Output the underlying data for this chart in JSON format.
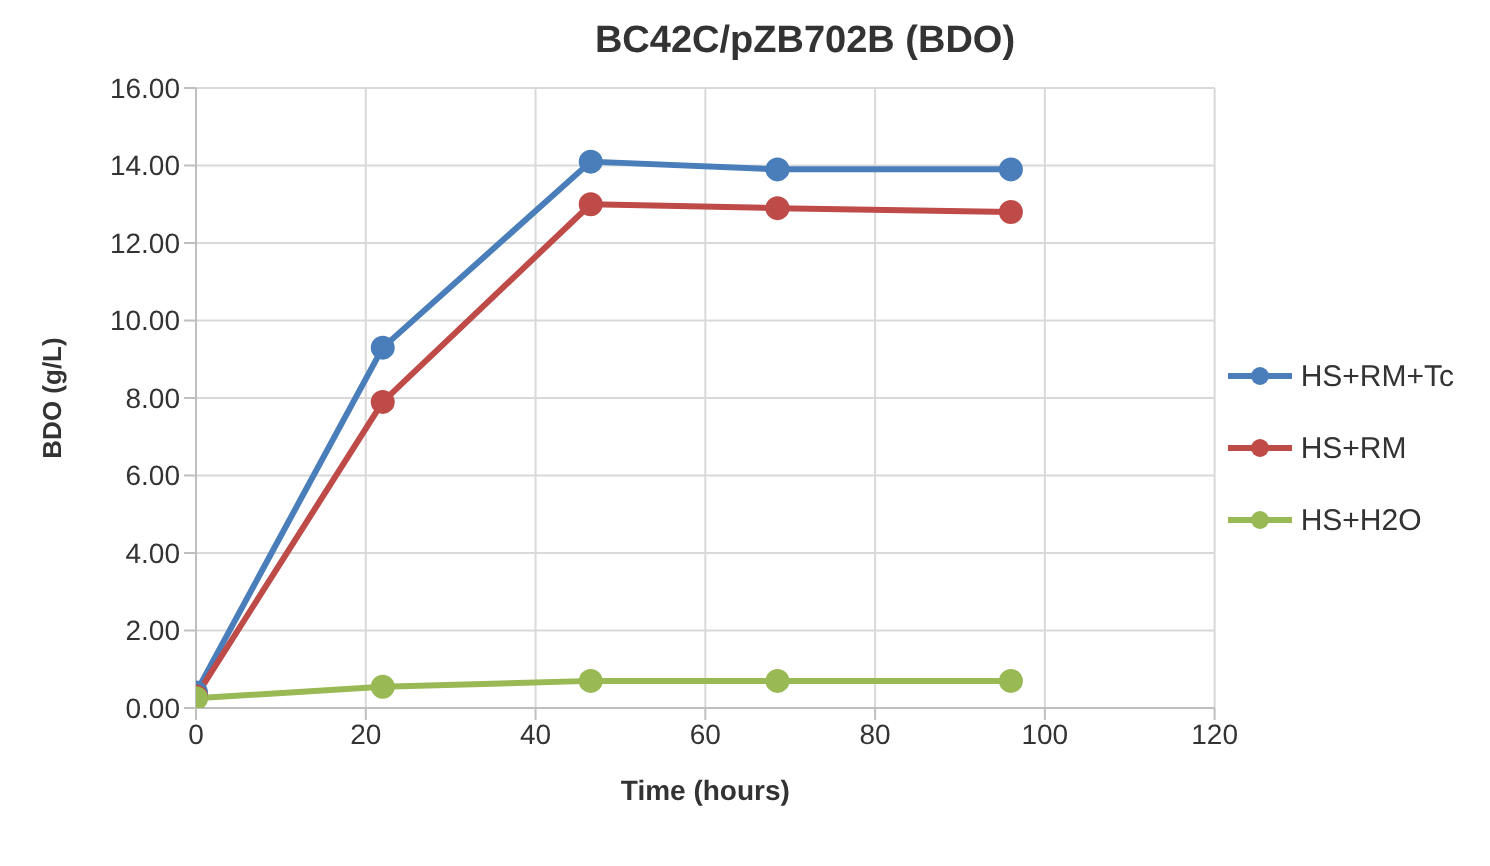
{
  "chart_data": {
    "type": "line",
    "title": "BC42C/pZB702B (BDO)",
    "xlabel": "Time (hours)",
    "ylabel": "BDO (g/L)",
    "x": [
      0,
      22,
      46.5,
      68.5,
      96
    ],
    "series": [
      {
        "name": "HS+RM+Tc",
        "color": "#4a7ebb",
        "values": [
          0.4,
          9.3,
          14.1,
          13.9,
          13.9
        ]
      },
      {
        "name": "HS+RM",
        "color": "#be4b48",
        "values": [
          0.3,
          7.9,
          13.0,
          12.9,
          12.8
        ]
      },
      {
        "name": "HS+H2O",
        "color": "#98b954",
        "values": [
          0.25,
          0.55,
          0.7,
          0.7,
          0.7
        ]
      }
    ],
    "xlim": [
      0,
      120
    ],
    "xticks": [
      0,
      20,
      40,
      60,
      80,
      100,
      120
    ],
    "ylim": [
      0,
      16
    ],
    "yticks": [
      {
        "value": 0,
        "label": "0.00"
      },
      {
        "value": 2,
        "label": "2.00"
      },
      {
        "value": 4,
        "label": "4.00"
      },
      {
        "value": 6,
        "label": "6.00"
      },
      {
        "value": 8,
        "label": "8.00"
      },
      {
        "value": 10,
        "label": "10.00"
      },
      {
        "value": 12,
        "label": "12.00"
      },
      {
        "value": 14,
        "label": "14.00"
      },
      {
        "value": 16,
        "label": "16.00"
      }
    ],
    "grid": true,
    "legend": "right",
    "marker": "circle",
    "line_style": "solid"
  }
}
